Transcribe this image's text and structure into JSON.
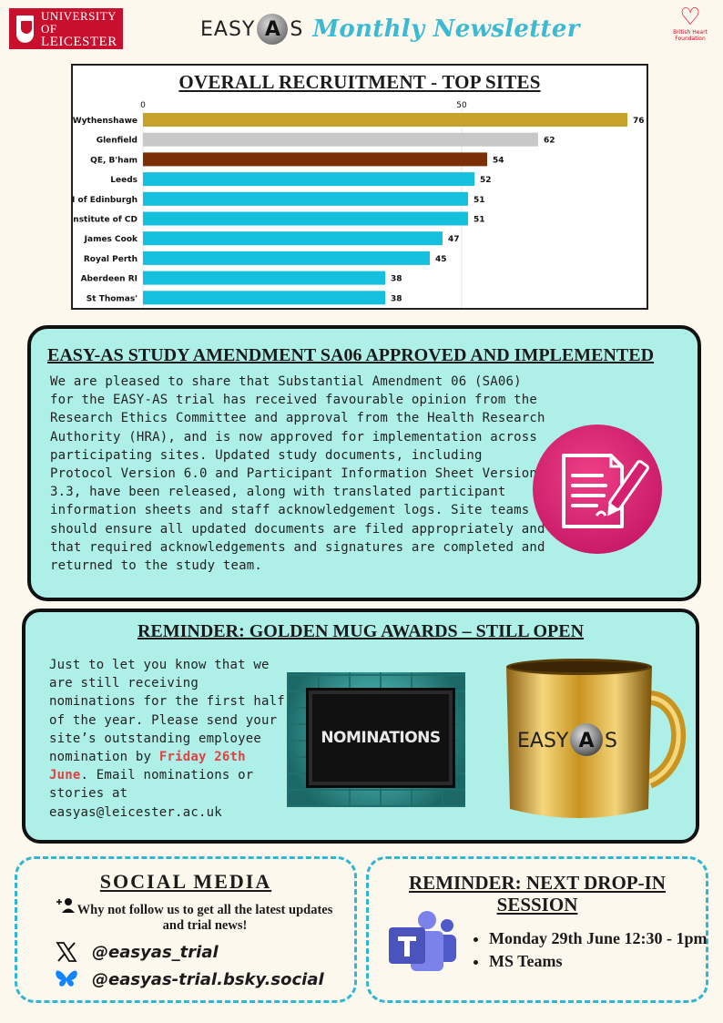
{
  "header": {
    "university_line1": "UNIVERSITY OF",
    "university_line2": "LEICESTER",
    "logo_left": "EASY",
    "logo_a": "A",
    "logo_right": "S",
    "newsletter_title": "Monthly Newsletter",
    "bhf_line1": "British Heart",
    "bhf_line2": "Foundation"
  },
  "chart_data": {
    "type": "bar",
    "orientation": "horizontal",
    "title": "OVERALL RECRUITMENT - TOP SITES",
    "xlim": [
      0,
      80
    ],
    "ticks": [
      0,
      50
    ],
    "tick_labels": [
      "0",
      "50"
    ],
    "grid": true,
    "categories": [
      "Wythenshawe",
      "Glenfield",
      "QE, B'ham",
      "Leeds",
      "RI of Edinburgh",
      "Institute of CD",
      "James Cook",
      "Royal Perth",
      "Aberdeen RI",
      "St Thomas'"
    ],
    "values": [
      76,
      62,
      54,
      52,
      51,
      51,
      47,
      45,
      38,
      38
    ],
    "value_labels": [
      "76",
      "62",
      "54",
      "52",
      "51",
      "51",
      "47",
      "45",
      "38",
      "38"
    ],
    "colors": [
      "#c6a22b",
      "#c8c8c8",
      "#7a2f06",
      "#14c0dd",
      "#14c0dd",
      "#14c0dd",
      "#14c0dd",
      "#14c0dd",
      "#14c0dd",
      "#14c0dd"
    ]
  },
  "amendment": {
    "title": "EASY-AS STUDY AMENDMENT SA06 APPROVED AND IMPLEMENTED",
    "body": "We are pleased to share that Substantial Amendment 06 (SA06) for the EASY-AS trial has received favourable opinion from the Research Ethics Committee and approval from the Health Research Authority (HRA), and is now approved for implementation across participating sites. Updated study documents, including Protocol Version 6.0 and Participant Information Sheet Version 3.3, have been released, along with translated participant information sheets and staff acknowledgement logs. Site teams should ensure all updated documents are filed appropriately and that required acknowledgements and signatures are completed and returned to the study team."
  },
  "golden_mug": {
    "title": "REMINDER: GOLDEN MUG AWARDS – STILL OPEN",
    "body_before": "Just to let you know that we are still receiving nominations for the first half of the year. Please send your site’s outstanding employee nomination by ",
    "deadline": "Friday 26th June",
    "body_after": ". Email nominations or stories at easyas@leicester.ac.uk",
    "board_text": "NOMINATIONS",
    "mug_logo_left": "EASY",
    "mug_logo_a": "A",
    "mug_logo_right": "S",
    "accent_color": "#e24141"
  },
  "social": {
    "title": "SOCIAL MEDIA",
    "subtitle": "Why not follow us to get all the latest updates and trial news!",
    "x_handle": "@easyas_trial",
    "bluesky_handle": "@easyas-trial.bsky.social",
    "border_color": "#2fb6d3"
  },
  "dropin": {
    "title": "REMINDER: NEXT DROP-IN SESSION",
    "items": [
      "Monday 29th June 12:30 - 1pm",
      "MS Teams"
    ]
  }
}
